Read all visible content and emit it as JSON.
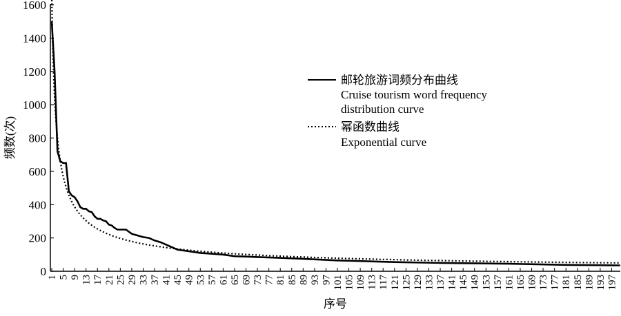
{
  "chart_data": {
    "type": "line",
    "title": "",
    "xlabel": "序号",
    "ylabel": "频数(次)",
    "xlim": [
      1,
      200
    ],
    "ylim": [
      0,
      1600
    ],
    "yticks": [
      0,
      200,
      400,
      600,
      800,
      1000,
      1200,
      1400,
      1600
    ],
    "xticks": [
      1,
      5,
      9,
      13,
      17,
      21,
      25,
      29,
      33,
      37,
      41,
      45,
      49,
      53,
      57,
      61,
      65,
      69,
      73,
      77,
      81,
      85,
      89,
      93,
      97,
      101,
      105,
      109,
      113,
      117,
      121,
      125,
      129,
      133,
      137,
      141,
      145,
      149,
      153,
      157,
      161,
      165,
      169,
      173,
      177,
      181,
      185,
      189,
      193,
      197
    ],
    "grid": false,
    "legend_position": "center-right",
    "series": [
      {
        "name": "邮轮旅游词频分布曲线",
        "name_en": "Cruise tourism word frequency distribution curve",
        "style": "solid",
        "x": [
          1,
          2,
          3,
          4,
          5,
          6,
          7,
          8,
          9,
          10,
          11,
          12,
          13,
          14,
          15,
          16,
          17,
          18,
          19,
          20,
          21,
          22,
          23,
          24,
          25,
          27,
          29,
          31,
          33,
          35,
          37,
          39,
          41,
          43,
          45,
          49,
          53,
          57,
          61,
          65,
          69,
          73,
          81,
          89,
          101,
          121,
          137,
          161,
          181,
          200
        ],
        "y": [
          1500,
          1200,
          720,
          660,
          650,
          650,
          480,
          455,
          445,
          420,
          385,
          375,
          375,
          360,
          355,
          330,
          315,
          315,
          305,
          300,
          280,
          275,
          260,
          250,
          250,
          250,
          225,
          215,
          205,
          200,
          185,
          175,
          160,
          145,
          130,
          120,
          110,
          105,
          100,
          90,
          88,
          85,
          80,
          75,
          65,
          55,
          50,
          45,
          38,
          35
        ]
      },
      {
        "name": "幂函数曲线",
        "name_en": "Exponential curve",
        "style": "dotted",
        "fit": {
          "a": 1650,
          "b": 0.66
        }
      }
    ]
  }
}
